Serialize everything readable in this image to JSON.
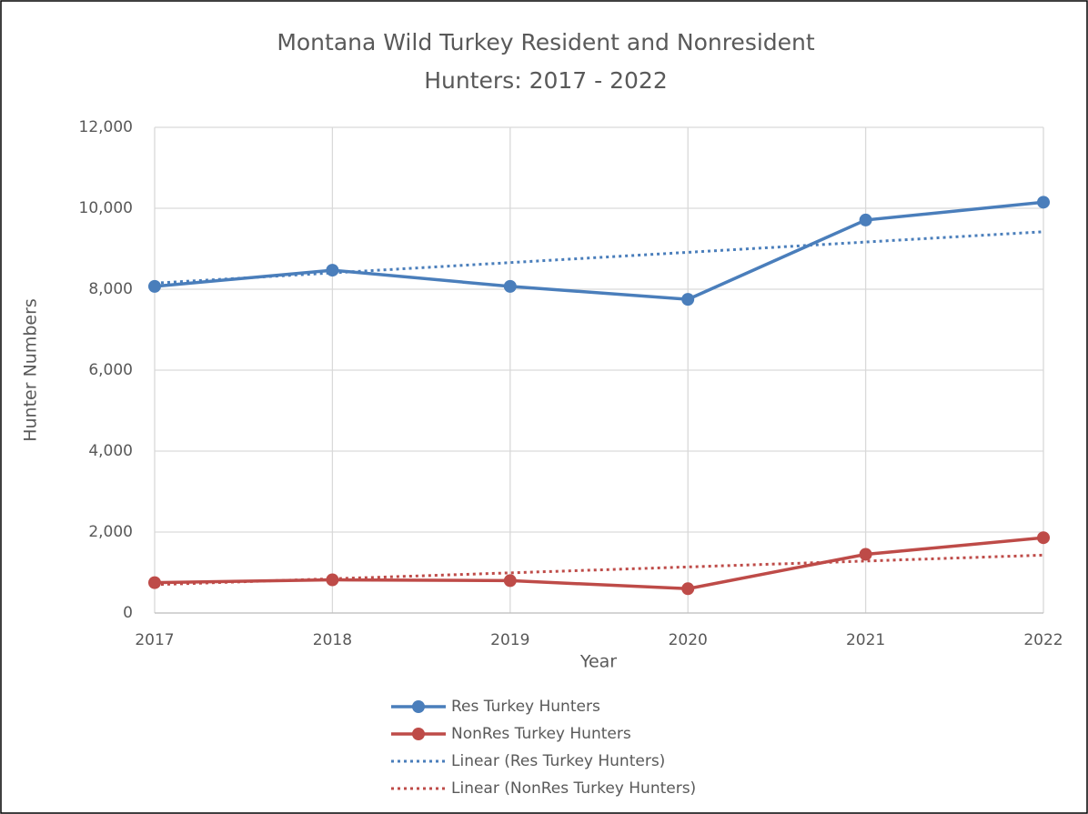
{
  "chart_data": {
    "type": "line",
    "title": [
      "Montana Wild Turkey Resident and Nonresident",
      "Hunters: 2017 - 2022"
    ],
    "x_label": "Year",
    "y_label": "Hunter Numbers",
    "x": [
      2017,
      2018,
      2019,
      2020,
      2021,
      2022
    ],
    "xlim": [
      2017,
      2022
    ],
    "xticks": [
      2017,
      2018,
      2019,
      2020,
      2021,
      2022
    ],
    "ylim": [
      0,
      12000
    ],
    "yticks": [
      0,
      {
        "value": 2000,
        "label": "2,000"
      },
      {
        "value": 4000,
        "label": "4,000"
      },
      {
        "value": 6000,
        "label": "6,000"
      },
      {
        "value": 8000,
        "label": "8,000"
      },
      {
        "value": 10000,
        "label": "10,000"
      },
      {
        "value": 12000,
        "label": "12,000"
      }
    ],
    "grid": true,
    "legend": "bottom",
    "series": [
      {
        "name": "Res Turkey Hunters",
        "color": "#4a7ebb",
        "markers": true,
        "dashed": false,
        "values": [
          8070,
          8470,
          8070,
          7750,
          9710,
          10150
        ]
      },
      {
        "name": "NonRes Turkey Hunters",
        "color": "#be4b48",
        "markers": true,
        "dashed": false,
        "values": [
          750,
          820,
          800,
          600,
          1450,
          1860
        ]
      },
      {
        "name": "Linear (Res Turkey Hunters)",
        "color": "#4a7ebb",
        "markers": false,
        "dashed": true,
        "values": [
          8150,
          8404,
          8658,
          8912,
          9166,
          9420
        ]
      },
      {
        "name": "Linear (NonRes Turkey Hunters)",
        "color": "#be4b48",
        "markers": false,
        "dashed": true,
        "values": [
          700,
          846,
          992,
          1138,
          1284,
          1430
        ]
      }
    ]
  }
}
